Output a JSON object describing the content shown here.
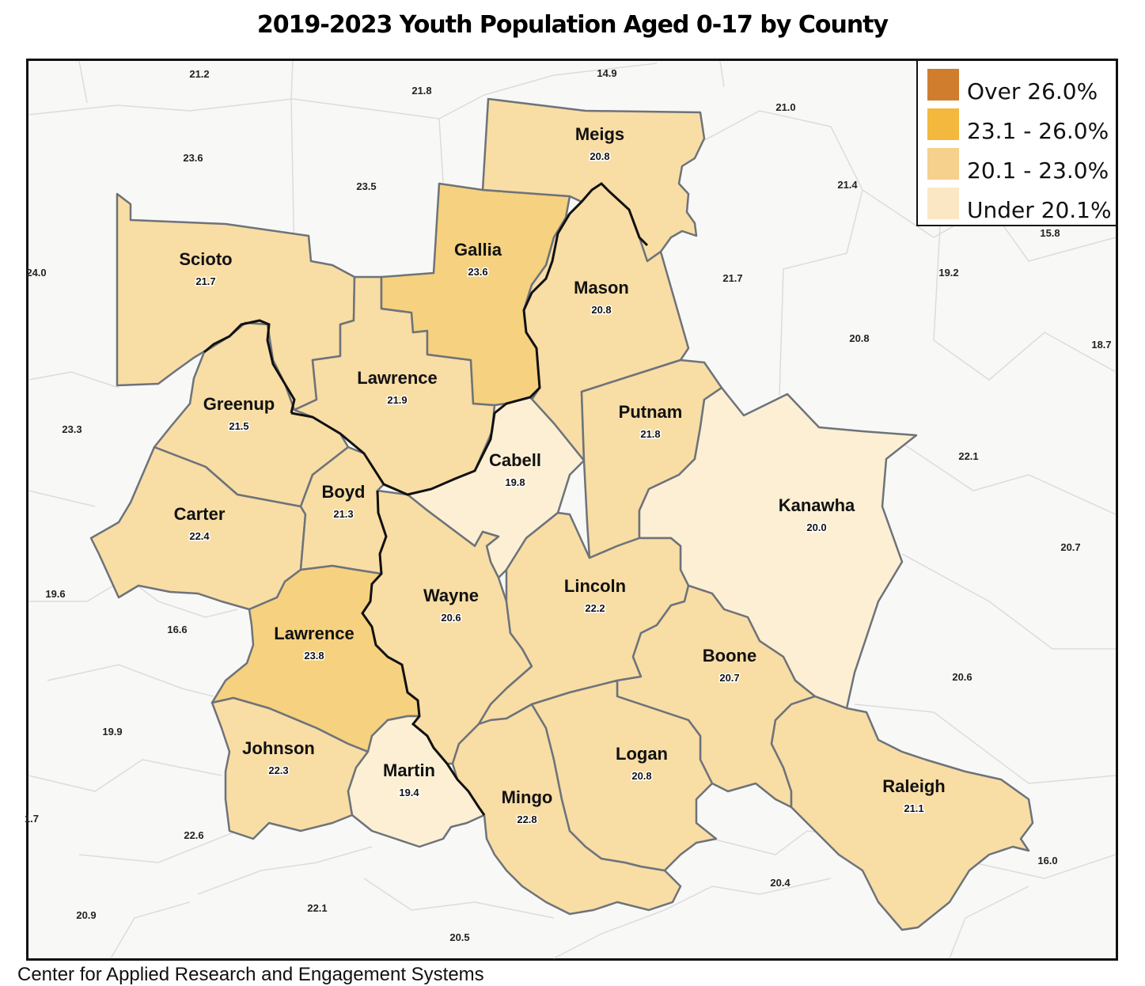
{
  "title": "2019-2023 Youth Population Aged 0-17 by County",
  "source": "Center for Applied Research and Engagement Systems",
  "legend": [
    {
      "label": "Over 26.0%",
      "color": "#d07d2e"
    },
    {
      "label": "23.1 - 26.0%",
      "color": "#f3b83d"
    },
    {
      "label": "20.1 - 23.0%",
      "color": "#f6d08d"
    },
    {
      "label": "Under 20.1%",
      "color": "#fbe7c3"
    }
  ],
  "colors": {
    "tier_23_26": "#f6d17f",
    "tier_20_23": "#f8dda5",
    "tier_under_20": "#fdefd3",
    "background": "#f8f8f7",
    "county_border": "#6d737a",
    "state_line": "#111111"
  },
  "counties": [
    {
      "id": "scioto",
      "name": "Scioto",
      "value": "21.7",
      "tier": "tier_20_23"
    },
    {
      "id": "lawrence-oh",
      "name": "Lawrence",
      "value": "21.9",
      "tier": "tier_20_23"
    },
    {
      "id": "gallia",
      "name": "Gallia",
      "value": "23.6",
      "tier": "tier_23_26"
    },
    {
      "id": "meigs",
      "name": "Meigs",
      "value": "20.8",
      "tier": "tier_20_23"
    },
    {
      "id": "mason",
      "name": "Mason",
      "value": "20.8",
      "tier": "tier_20_23"
    },
    {
      "id": "greenup",
      "name": "Greenup",
      "value": "21.5",
      "tier": "tier_20_23"
    },
    {
      "id": "carter",
      "name": "Carter",
      "value": "22.4",
      "tier": "tier_20_23"
    },
    {
      "id": "boyd",
      "name": "Boyd",
      "value": "21.3",
      "tier": "tier_20_23"
    },
    {
      "id": "cabell",
      "name": "Cabell",
      "value": "19.8",
      "tier": "tier_under_20"
    },
    {
      "id": "putnam",
      "name": "Putnam",
      "value": "21.8",
      "tier": "tier_20_23"
    },
    {
      "id": "kanawha",
      "name": "Kanawha",
      "value": "20.0",
      "tier": "tier_under_20"
    },
    {
      "id": "wayne",
      "name": "Wayne",
      "value": "20.6",
      "tier": "tier_20_23"
    },
    {
      "id": "lincoln",
      "name": "Lincoln",
      "value": "22.2",
      "tier": "tier_20_23"
    },
    {
      "id": "lawrence-ky",
      "name": "Lawrence",
      "value": "23.8",
      "tier": "tier_23_26"
    },
    {
      "id": "boone",
      "name": "Boone",
      "value": "20.7",
      "tier": "tier_20_23"
    },
    {
      "id": "johnson",
      "name": "Johnson",
      "value": "22.3",
      "tier": "tier_20_23"
    },
    {
      "id": "martin",
      "name": "Martin",
      "value": "19.4",
      "tier": "tier_under_20"
    },
    {
      "id": "mingo",
      "name": "Mingo",
      "value": "22.8",
      "tier": "tier_20_23"
    },
    {
      "id": "logan",
      "name": "Logan",
      "value": "20.8",
      "tier": "tier_20_23"
    },
    {
      "id": "raleigh",
      "name": "Raleigh",
      "value": "21.1",
      "tier": "tier_20_23"
    }
  ],
  "outside_values": [
    "21.2",
    "14.9",
    "21.8",
    "21.0",
    "23.6",
    "23.5",
    "21.4",
    "15.8",
    "24.0",
    "21.7",
    "19.2",
    "20.8",
    "18.7",
    "23.3",
    "22.1",
    "20.7",
    "19.6",
    "16.6",
    "20.6",
    "19.9",
    "1.7",
    "22.6",
    "16.0",
    "20.4",
    "20.9",
    "22.1",
    "20.5"
  ]
}
